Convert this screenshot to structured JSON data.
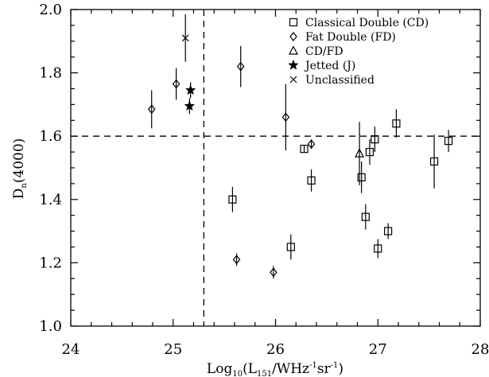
{
  "chart_data": {
    "type": "scatter",
    "title": "",
    "xlabel": {
      "pre": "Log",
      "sub1": "10",
      "mid": "(L",
      "sub2": "151",
      "slash": "/WHz",
      "sup1": "-1",
      "sr": "sr",
      "sup2": "-1",
      "close": ")"
    },
    "ylabel": {
      "pre": "D",
      "sub": "n",
      "post": "(4000)"
    },
    "xlim": [
      24,
      28
    ],
    "ylim": [
      1.0,
      2.0
    ],
    "xticks": [
      "24",
      "25",
      "26",
      "27",
      "28"
    ],
    "yticks": [
      "1.0",
      "1.2",
      "1.4",
      "1.6",
      "1.8",
      "2.0"
    ],
    "grid": false,
    "legend_position": "top-right",
    "reference_lines": {
      "vertical_x": 25.3,
      "horizontal_y": 1.6
    },
    "series": [
      {
        "name": "Classical Double (CD)",
        "marker": "square",
        "points": [
          {
            "x": 25.58,
            "y": 1.4,
            "err": 0.04
          },
          {
            "x": 26.15,
            "y": 1.25,
            "err": 0.04
          },
          {
            "x": 26.28,
            "y": 1.56,
            "err": 0.012
          },
          {
            "x": 26.35,
            "y": 1.46,
            "err": 0.035
          },
          {
            "x": 26.84,
            "y": 1.47,
            "err": 0.05
          },
          {
            "x": 26.88,
            "y": 1.345,
            "err": 0.04
          },
          {
            "x": 26.92,
            "y": 1.55,
            "err": 0.04
          },
          {
            "x": 26.97,
            "y": 1.59,
            "err": 0.04
          },
          {
            "x": 27.0,
            "y": 1.245,
            "err": 0.03
          },
          {
            "x": 27.1,
            "y": 1.3,
            "err": 0.025
          },
          {
            "x": 27.18,
            "y": 1.64,
            "err": 0.045
          },
          {
            "x": 27.55,
            "y": 1.52,
            "err": 0.085
          },
          {
            "x": 27.69,
            "y": 1.585,
            "err": 0.035
          }
        ]
      },
      {
        "name": "Fat Double (FD)",
        "marker": "diamond",
        "points": [
          {
            "x": 24.79,
            "y": 1.685,
            "err": 0.06
          },
          {
            "x": 25.03,
            "y": 1.765,
            "err": 0.05
          },
          {
            "x": 25.62,
            "y": 1.21,
            "err": 0.02
          },
          {
            "x": 25.66,
            "y": 1.82,
            "err": 0.065
          },
          {
            "x": 25.98,
            "y": 1.17,
            "err": 0.02
          },
          {
            "x": 26.1,
            "y": 1.66,
            "err": 0.105
          },
          {
            "x": 26.35,
            "y": 1.575,
            "err": 0.015
          }
        ]
      },
      {
        "name": "CD/FD",
        "marker": "triangle",
        "points": [
          {
            "x": 26.82,
            "y": 1.545,
            "err": 0.1
          }
        ]
      },
      {
        "name": "Jetted (J)",
        "marker": "star",
        "points": [
          {
            "x": 25.17,
            "y": 1.745,
            "err": 0.025
          },
          {
            "x": 25.16,
            "y": 1.695,
            "err": 0.025
          }
        ]
      },
      {
        "name": "Unclassified",
        "marker": "x",
        "points": [
          {
            "x": 25.12,
            "y": 1.91,
            "err": 0.075
          }
        ]
      }
    ]
  }
}
